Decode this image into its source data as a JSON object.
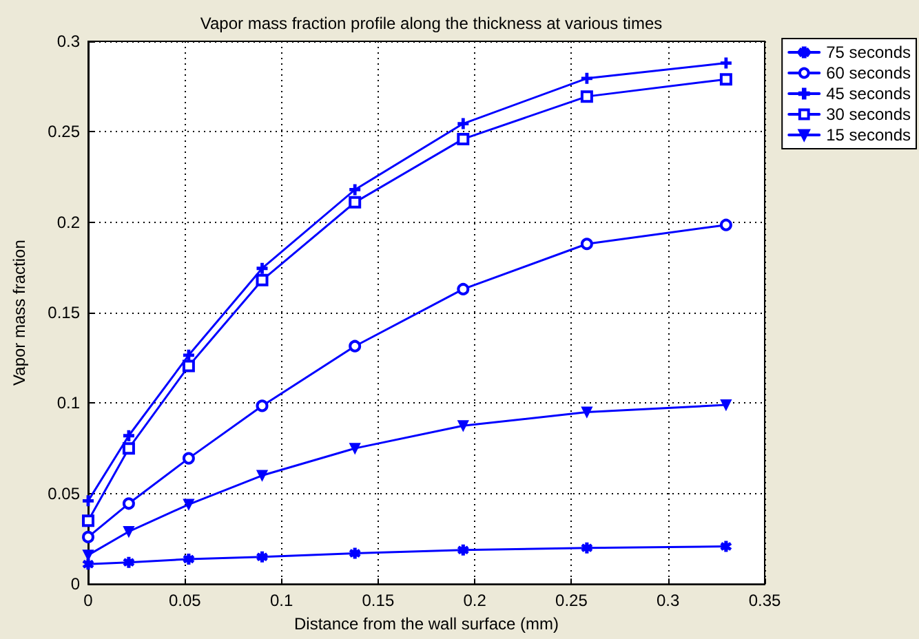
{
  "chart_data": {
    "type": "line",
    "title": "Vapor mass fraction profile along the thickness at various times",
    "xlabel": "Distance from the wall surface (mm)",
    "ylabel": "Vapor mass fraction",
    "x": [
      0,
      0.021,
      0.052,
      0.09,
      0.138,
      0.194,
      0.258,
      0.33
    ],
    "series": [
      {
        "name": "75 seconds",
        "color": "#0000ff",
        "marker": "star",
        "values": [
          0.011,
          0.012,
          0.0138,
          0.015,
          0.017,
          0.0188,
          0.02,
          0.0208
        ]
      },
      {
        "name": "60 seconds",
        "color": "#0000ff",
        "marker": "circle",
        "values": [
          0.026,
          0.0445,
          0.0695,
          0.0985,
          0.1315,
          0.163,
          0.188,
          0.1985
        ]
      },
      {
        "name": "45 seconds",
        "color": "#0000ff",
        "marker": "cross",
        "values": [
          0.046,
          0.082,
          0.1265,
          0.1745,
          0.218,
          0.2545,
          0.2795,
          0.288
        ]
      },
      {
        "name": "30 seconds",
        "color": "#0000ff",
        "marker": "square",
        "values": [
          0.035,
          0.075,
          0.1205,
          0.168,
          0.211,
          0.246,
          0.2695,
          0.279
        ]
      },
      {
        "name": "15 seconds",
        "color": "#0000ff",
        "marker": "triangle",
        "values": [
          0.016,
          0.029,
          0.044,
          0.06,
          0.075,
          0.0875,
          0.095,
          0.099
        ]
      }
    ],
    "xlim": [
      0,
      0.35
    ],
    "xticks": [
      0,
      0.05,
      0.1,
      0.15,
      0.2,
      0.25,
      0.3,
      0.35
    ],
    "ylim": [
      0,
      0.3
    ],
    "yticks": [
      0,
      0.05,
      0.1,
      0.15,
      0.2,
      0.25,
      0.3
    ],
    "grid": true,
    "legend": "top right",
    "line_style": "solid"
  }
}
